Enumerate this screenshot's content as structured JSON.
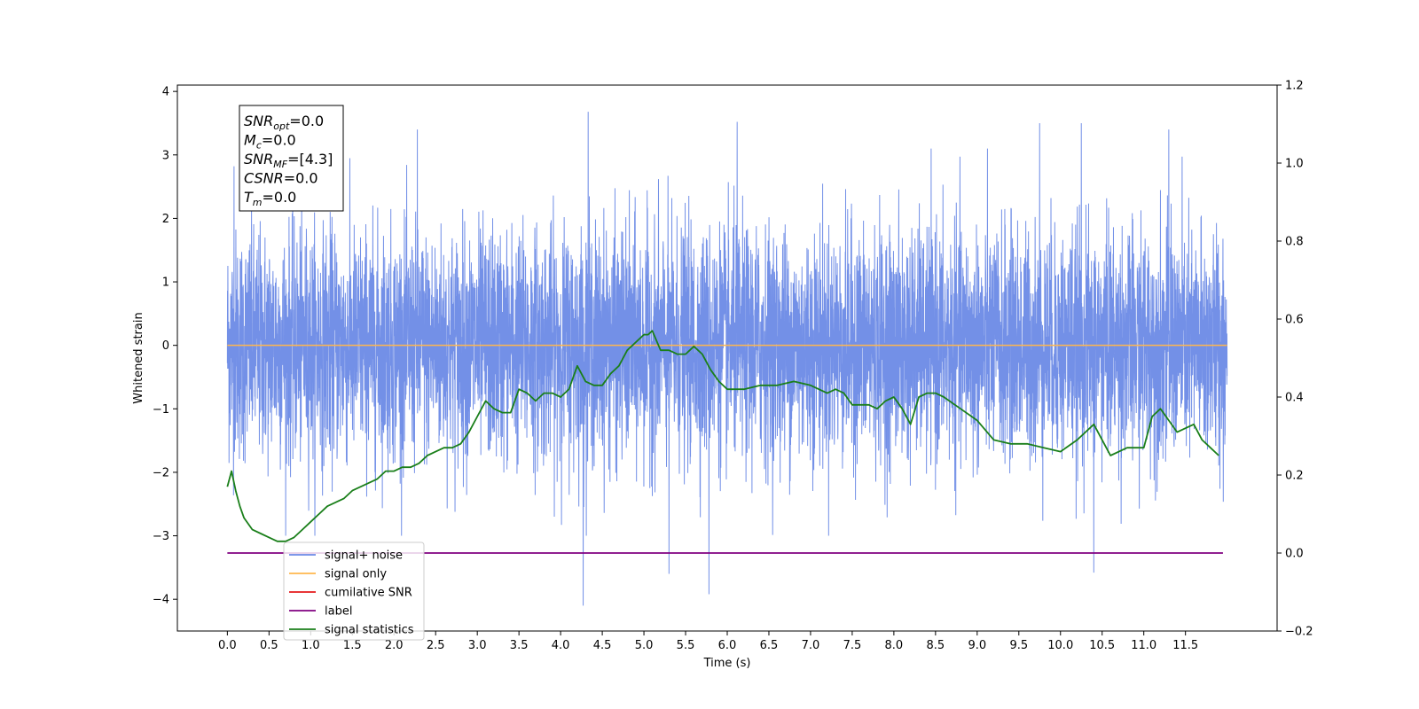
{
  "chart_data": {
    "type": "line",
    "title": "",
    "xlabel": "Time (s)",
    "ylabel": "Whitened strain",
    "xlim": [
      -0.6,
      12.6
    ],
    "ylim_left": [
      -4.5,
      4.1
    ],
    "ylim_right": [
      -0.2,
      1.2
    ],
    "x_ticks": [
      0.0,
      0.5,
      1.0,
      1.5,
      2.0,
      2.5,
      3.0,
      3.5,
      4.0,
      4.5,
      5.0,
      5.5,
      6.0,
      6.5,
      7.0,
      7.5,
      8.0,
      8.5,
      9.0,
      9.5,
      10.0,
      10.5,
      11.0,
      11.5
    ],
    "x_tick_labels": [
      "0.0",
      "0.5",
      "1.0",
      "1.5",
      "2.0",
      "2.5",
      "3.0",
      "3.5",
      "4.0",
      "4.5",
      "5.0",
      "5.5",
      "6.0",
      "6.5",
      "7.0",
      "7.5",
      "8.0",
      "8.5",
      "9.0",
      "9.5",
      "10.0",
      "10.5",
      "11.0",
      "11.5"
    ],
    "y_left_ticks": [
      -4,
      -3,
      -2,
      -1,
      0,
      1,
      2,
      3,
      4
    ],
    "y_left_tick_labels": [
      "−4",
      "−3",
      "−2",
      "−1",
      "0",
      "1",
      "2",
      "3",
      "4"
    ],
    "y_right_ticks": [
      -0.2,
      0.0,
      0.2,
      0.4,
      0.6,
      0.8,
      1.0,
      1.2
    ],
    "y_right_tick_labels": [
      "−0.2",
      "0.0",
      "0.2",
      "0.4",
      "0.6",
      "0.8",
      "1.0",
      "1.2"
    ],
    "legend_position": "lower-left",
    "series": [
      {
        "name": "signal+ noise",
        "color": "#6b8ae6",
        "axis": "left",
        "x_range": [
          0.0,
          12.0
        ],
        "typical_range": [
          -1.5,
          1.5
        ],
        "extremes": [
          {
            "x": 4.33,
            "y": 3.68
          },
          {
            "x": 4.27,
            "y": -4.1
          },
          {
            "x": 6.12,
            "y": 3.52
          },
          {
            "x": 5.78,
            "y": -3.92
          },
          {
            "x": 5.3,
            "y": -3.6
          },
          {
            "x": 10.4,
            "y": -3.58
          },
          {
            "x": 9.75,
            "y": 3.5
          },
          {
            "x": 10.25,
            "y": 3.5
          },
          {
            "x": 11.3,
            "y": 3.4
          },
          {
            "x": 2.28,
            "y": 3.4
          },
          {
            "x": 0.08,
            "y": 2.82
          }
        ]
      },
      {
        "name": "signal only",
        "color": "#ffb74d",
        "axis": "left",
        "x": [
          0.0,
          12.0
        ],
        "y": [
          0.0,
          0.0
        ]
      },
      {
        "name": "cumilative SNR",
        "color": "#e41a1c",
        "axis": "left",
        "x": [],
        "y": []
      },
      {
        "name": "label",
        "color": "#800080",
        "axis": "right",
        "x": [
          0.0,
          11.95
        ],
        "y": [
          0.0,
          0.0
        ]
      },
      {
        "name": "signal statistics",
        "color": "#1a7f1a",
        "axis": "right",
        "x": [
          0.0,
          0.05,
          0.1,
          0.15,
          0.2,
          0.3,
          0.4,
          0.5,
          0.6,
          0.7,
          0.8,
          0.9,
          1.0,
          1.1,
          1.2,
          1.3,
          1.4,
          1.5,
          1.6,
          1.7,
          1.8,
          1.9,
          2.0,
          2.1,
          2.2,
          2.3,
          2.4,
          2.5,
          2.6,
          2.7,
          2.8,
          2.9,
          3.0,
          3.1,
          3.2,
          3.3,
          3.4,
          3.5,
          3.6,
          3.7,
          3.8,
          3.9,
          4.0,
          4.1,
          4.2,
          4.3,
          4.4,
          4.5,
          4.6,
          4.7,
          4.8,
          4.9,
          5.0,
          5.05,
          5.1,
          5.2,
          5.3,
          5.4,
          5.5,
          5.6,
          5.7,
          5.8,
          5.9,
          6.0,
          6.2,
          6.4,
          6.6,
          6.8,
          7.0,
          7.1,
          7.2,
          7.3,
          7.4,
          7.5,
          7.6,
          7.7,
          7.8,
          7.9,
          8.0,
          8.1,
          8.2,
          8.3,
          8.4,
          8.5,
          8.6,
          8.8,
          9.0,
          9.2,
          9.4,
          9.6,
          9.8,
          10.0,
          10.2,
          10.4,
          10.5,
          10.6,
          10.8,
          11.0,
          11.1,
          11.2,
          11.3,
          11.4,
          11.6,
          11.7,
          11.8,
          11.9
        ],
        "y": [
          0.17,
          0.21,
          0.16,
          0.12,
          0.09,
          0.06,
          0.05,
          0.04,
          0.03,
          0.03,
          0.04,
          0.06,
          0.08,
          0.1,
          0.12,
          0.13,
          0.14,
          0.16,
          0.17,
          0.18,
          0.19,
          0.21,
          0.21,
          0.22,
          0.22,
          0.23,
          0.25,
          0.26,
          0.27,
          0.27,
          0.28,
          0.31,
          0.35,
          0.39,
          0.37,
          0.36,
          0.36,
          0.42,
          0.41,
          0.39,
          0.41,
          0.41,
          0.4,
          0.42,
          0.48,
          0.44,
          0.43,
          0.43,
          0.46,
          0.48,
          0.52,
          0.54,
          0.56,
          0.56,
          0.57,
          0.52,
          0.52,
          0.51,
          0.51,
          0.53,
          0.51,
          0.47,
          0.44,
          0.42,
          0.42,
          0.43,
          0.43,
          0.44,
          0.43,
          0.42,
          0.41,
          0.42,
          0.41,
          0.38,
          0.38,
          0.38,
          0.37,
          0.39,
          0.4,
          0.37,
          0.33,
          0.4,
          0.41,
          0.41,
          0.4,
          0.37,
          0.34,
          0.29,
          0.28,
          0.28,
          0.27,
          0.26,
          0.29,
          0.33,
          0.29,
          0.25,
          0.27,
          0.27,
          0.35,
          0.37,
          0.34,
          0.31,
          0.33,
          0.29,
          0.27,
          0.25
        ]
      }
    ],
    "annotation_lines": [
      {
        "name": "SNR",
        "sub": "opt",
        "value": "=0.0"
      },
      {
        "name": "M",
        "sub": "c",
        "value": "=0.0"
      },
      {
        "name": "SNR",
        "sub": "MF",
        "value": "=[4.3]"
      },
      {
        "name": "CSNR",
        "sub": "",
        "value": "=0.0"
      },
      {
        "name": "T",
        "sub": "m",
        "value": "=0.0"
      }
    ]
  }
}
